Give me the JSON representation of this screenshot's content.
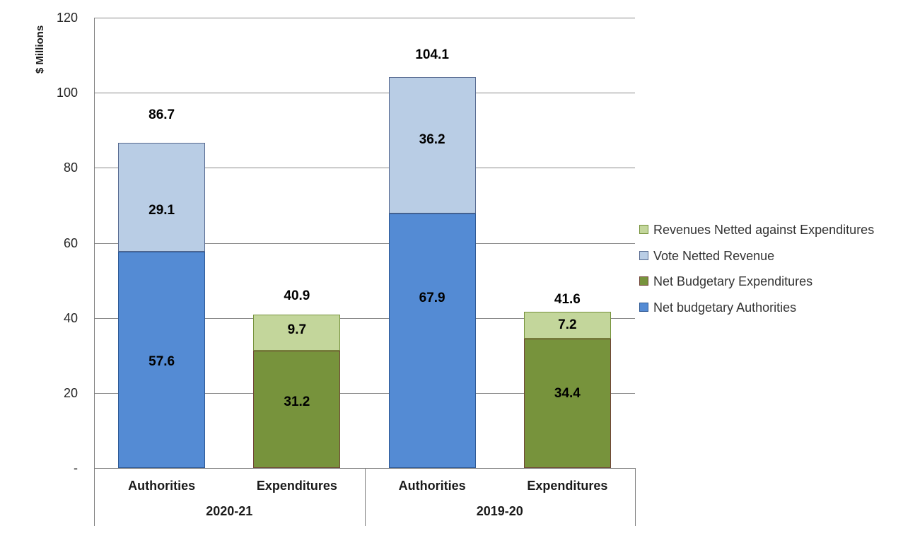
{
  "chart_data": {
    "type": "bar",
    "stacked": true,
    "title": "",
    "xlabel": "",
    "ylabel": "$ Millions",
    "ylim": [
      0,
      120
    ],
    "ytick_interval": 20,
    "ytick_labels": [
      "-",
      "20",
      "40",
      "60",
      "80",
      "100",
      "120"
    ],
    "grid": true,
    "legend_position": "right-middle",
    "groups": [
      {
        "label": "2020-21",
        "bars": [
          {
            "label": "Authorities",
            "total": 86.7,
            "segments": [
              {
                "name": "Net budgetary Authorities",
                "value": 57.6
              },
              {
                "name": "Vote Netted Revenue",
                "value": 29.1
              }
            ]
          },
          {
            "label": "Expenditures",
            "total": 40.9,
            "segments": [
              {
                "name": "Net Budgetary Expenditures",
                "value": 31.2
              },
              {
                "name": "Revenues Netted against Expenditures",
                "value": 9.7
              }
            ]
          }
        ]
      },
      {
        "label": "2019-20",
        "bars": [
          {
            "label": "Authorities",
            "total": 104.1,
            "segments": [
              {
                "name": "Net budgetary Authorities",
                "value": 67.9
              },
              {
                "name": "Vote Netted Revenue",
                "value": 36.2
              }
            ]
          },
          {
            "label": "Expenditures",
            "total": 41.6,
            "segments": [
              {
                "name": "Net Budgetary Expenditures",
                "value": 34.4
              },
              {
                "name": "Revenues Netted against Expenditures",
                "value": 7.2
              }
            ]
          }
        ]
      }
    ],
    "legend": [
      {
        "label": "Revenues Netted against Expenditures",
        "fill": "#C3D69B",
        "border": "#76923C"
      },
      {
        "label": "Vote Netted Revenue",
        "fill": "#B9CDE5",
        "border": "#56698F"
      },
      {
        "label": "Net Budgetary Expenditures",
        "fill": "#77933C",
        "border": "#714437"
      },
      {
        "label": "Net budgetary Authorities",
        "fill": "#548BD4",
        "border": "#2E5893"
      }
    ],
    "colors": {
      "gridline": "#8a8a8a",
      "axis": "#7f7f7f",
      "label_text": "#000000"
    }
  }
}
